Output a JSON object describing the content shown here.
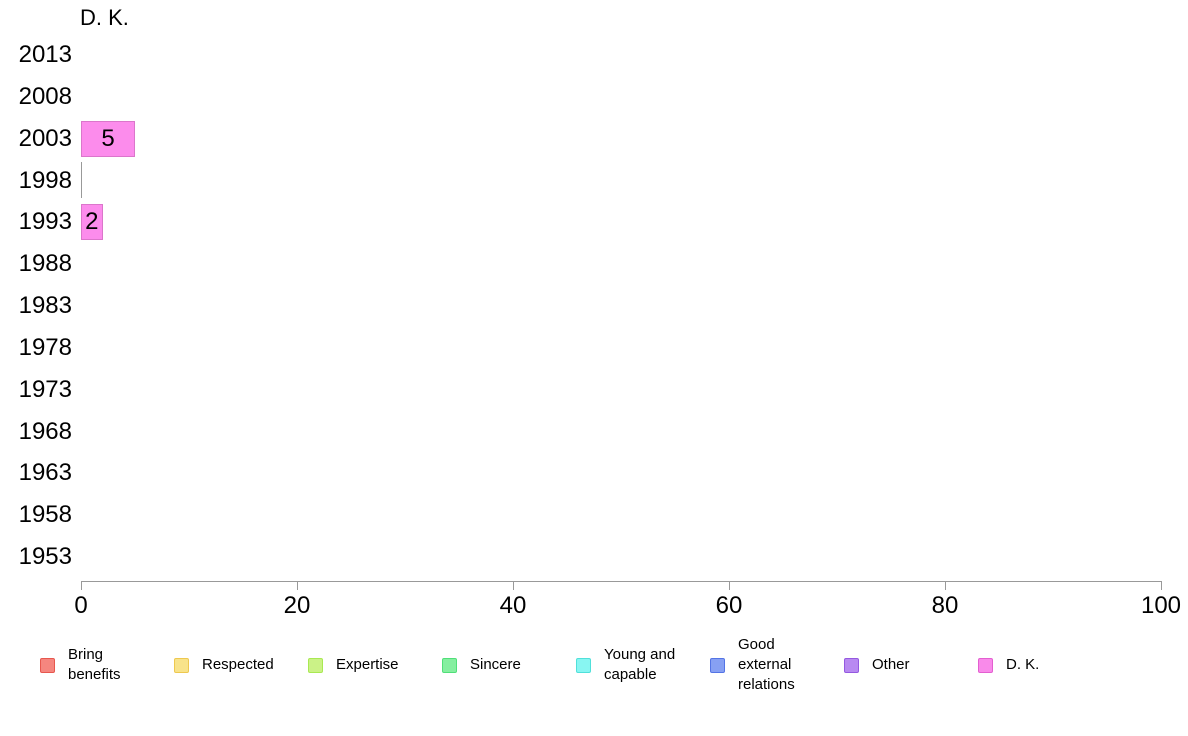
{
  "chart_data": {
    "type": "bar",
    "orientation": "horizontal",
    "title": "D. K.",
    "categories": [
      "2013",
      "2008",
      "2003",
      "1998",
      "1993",
      "1988",
      "1983",
      "1978",
      "1973",
      "1968",
      "1963",
      "1958",
      "1953"
    ],
    "series": [
      {
        "name": "D. K.",
        "values": [
          null,
          null,
          5,
          0,
          2,
          null,
          null,
          null,
          null,
          null,
          null,
          null,
          null
        ],
        "fill": "#fc8cec",
        "border": "#db76cb"
      }
    ],
    "xlim": [
      0,
      100
    ],
    "x_ticks": [
      0,
      20,
      40,
      60,
      80,
      100
    ],
    "grid": false,
    "axis_color": "#999999",
    "text_color": "#000000",
    "legend_position": "bottom",
    "legend": [
      {
        "label": "Bring\nbenefits",
        "fill": "#f5867f",
        "border": "#e7574e"
      },
      {
        "label": "Respected",
        "fill": "#f8e38a",
        "border": "#eec84f"
      },
      {
        "label": "Expertise",
        "fill": "#cbf287",
        "border": "#a9e952"
      },
      {
        "label": "Sincere",
        "fill": "#85efa0",
        "border": "#50df79"
      },
      {
        "label": "Young and\ncapable",
        "fill": "#88f6f2",
        "border": "#50e0da"
      },
      {
        "label": "Good\nexternal\nrelations",
        "fill": "#87a0f3",
        "border": "#5474e5"
      },
      {
        "label": "Other",
        "fill": "#b889f1",
        "border": "#9459e0"
      },
      {
        "label": "D. K.",
        "fill": "#f98aea",
        "border": "#e35fd0"
      }
    ]
  }
}
